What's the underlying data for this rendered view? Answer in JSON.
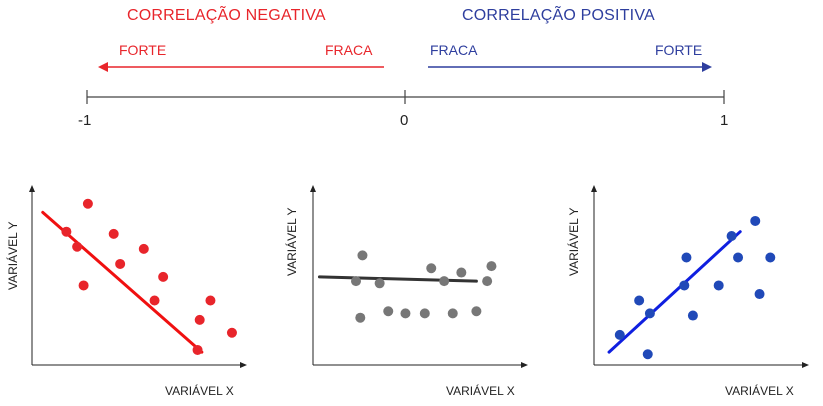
{
  "scale": {
    "negative_title": "CORRELAÇÃO NEGATIVA",
    "positive_title": "CORRELAÇÃO POSITIVA",
    "neg_strong": "FORTE",
    "neg_weak": "FRACA",
    "pos_weak": "FRACA",
    "pos_strong": "FORTE",
    "ticks": [
      "-1",
      "0",
      "1"
    ],
    "colors": {
      "negative": "#e8252b",
      "positive": "#2e3e9e",
      "axis": "#444444"
    }
  },
  "plots": [
    {
      "id": "negative",
      "xlabel": "VARIÁVEL X",
      "ylabel": "VARIÁVEL Y",
      "color": "#e8252b",
      "points": [
        [
          2.6,
          7.5
        ],
        [
          1.6,
          6.2
        ],
        [
          3.8,
          6.1
        ],
        [
          2.1,
          5.5
        ],
        [
          5.2,
          5.4
        ],
        [
          4.1,
          4.7
        ],
        [
          6.1,
          4.1
        ],
        [
          2.4,
          3.7
        ],
        [
          5.7,
          3.0
        ],
        [
          7.8,
          2.1
        ],
        [
          8.3,
          3.0
        ],
        [
          9.3,
          1.5
        ],
        [
          7.7,
          0.7
        ]
      ],
      "trend": [
        [
          0.5,
          7.1
        ],
        [
          7.9,
          0.6
        ]
      ]
    },
    {
      "id": "none",
      "xlabel": "VARIÁVEL X",
      "ylabel": "VARIÁVEL Y",
      "color": "#777777",
      "points": [
        [
          2.3,
          5.1
        ],
        [
          2.0,
          3.9
        ],
        [
          3.1,
          3.8
        ],
        [
          6.1,
          3.9
        ],
        [
          6.9,
          4.3
        ],
        [
          2.2,
          2.2
        ],
        [
          3.5,
          2.5
        ],
        [
          4.3,
          2.4
        ],
        [
          5.2,
          2.4
        ],
        [
          6.5,
          2.4
        ],
        [
          7.6,
          2.5
        ],
        [
          8.1,
          3.9
        ],
        [
          8.3,
          4.6
        ],
        [
          5.5,
          4.5
        ]
      ],
      "trend": [
        [
          0.3,
          4.1
        ],
        [
          7.6,
          3.9
        ]
      ]
    },
    {
      "id": "positive",
      "xlabel": "VARIÁVEL X",
      "ylabel": "VARIÁVEL Y",
      "color": "#2049b8",
      "points": [
        [
          1.2,
          1.4
        ],
        [
          2.1,
          3.0
        ],
        [
          2.6,
          2.4
        ],
        [
          2.5,
          0.5
        ],
        [
          4.3,
          5.0
        ],
        [
          4.2,
          3.7
        ],
        [
          4.6,
          2.3
        ],
        [
          5.8,
          3.7
        ],
        [
          6.4,
          6.0
        ],
        [
          6.7,
          5.0
        ],
        [
          7.5,
          6.7
        ],
        [
          7.7,
          3.3
        ],
        [
          8.2,
          5.0
        ]
      ],
      "trend": [
        [
          0.7,
          0.6
        ],
        [
          6.8,
          6.2
        ]
      ]
    }
  ]
}
